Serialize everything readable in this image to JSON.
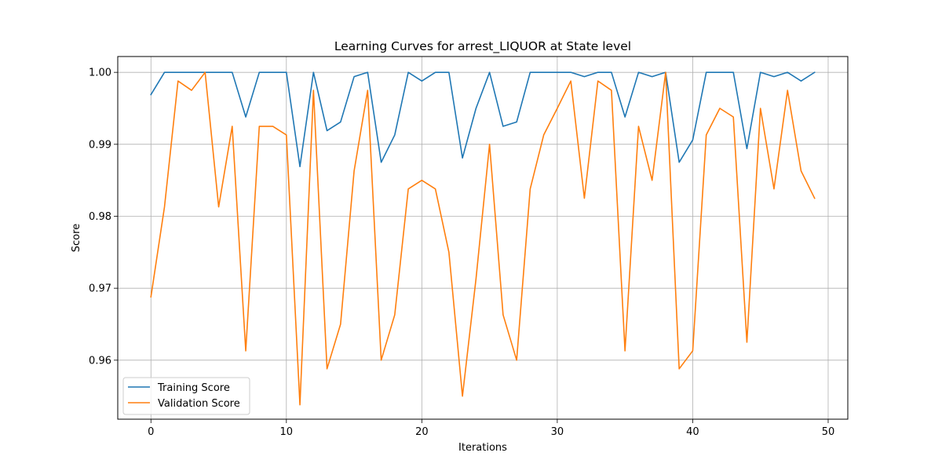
{
  "chart_data": {
    "type": "line",
    "title": "Learning Curves for arrest_LIQUOR at State level",
    "xlabel": "Iterations",
    "ylabel": "Score",
    "xlim": [
      -2.45,
      51.45
    ],
    "ylim": [
      0.9518,
      1.0022
    ],
    "x_ticks": [
      0,
      10,
      20,
      30,
      40,
      50
    ],
    "y_ticks": [
      0.96,
      0.97,
      0.98,
      0.99,
      1.0
    ],
    "x_tick_labels": [
      "0",
      "10",
      "20",
      "30",
      "40",
      "50"
    ],
    "y_tick_labels": [
      "0.96",
      "0.97",
      "0.98",
      "0.99",
      "1.00"
    ],
    "grid": true,
    "legend_position": "lower-left",
    "x": [
      0,
      1,
      2,
      3,
      4,
      5,
      6,
      7,
      8,
      9,
      10,
      11,
      12,
      13,
      14,
      15,
      16,
      17,
      18,
      19,
      20,
      21,
      22,
      23,
      24,
      25,
      26,
      27,
      28,
      29,
      30,
      31,
      32,
      33,
      34,
      35,
      36,
      37,
      38,
      39,
      40,
      41,
      42,
      43,
      44,
      45,
      46,
      47,
      48,
      49
    ],
    "series": [
      {
        "name": "Training Score",
        "color": "#1f77b4",
        "values": [
          0.9969,
          1.0,
          1.0,
          1.0,
          1.0,
          1.0,
          1.0,
          0.9938,
          1.0,
          1.0,
          1.0,
          0.9869,
          1.0,
          0.9919,
          0.9931,
          0.9994,
          1.0,
          0.9875,
          0.9913,
          1.0,
          0.9988,
          1.0,
          1.0,
          0.9881,
          0.995,
          1.0,
          0.9925,
          0.9931,
          1.0,
          1.0,
          1.0,
          1.0,
          0.9994,
          1.0,
          1.0,
          0.9938,
          1.0,
          0.9994,
          1.0,
          0.9875,
          0.9906,
          1.0,
          1.0,
          1.0,
          0.9894,
          1.0,
          0.9994,
          1.0,
          0.9988,
          1.0
        ]
      },
      {
        "name": "Validation Score",
        "color": "#ff7f0e",
        "values": [
          0.9688,
          0.9813,
          0.9988,
          0.9975,
          1.0,
          0.9813,
          0.9925,
          0.9613,
          0.9925,
          0.9925,
          0.9913,
          0.9538,
          0.9975,
          0.9588,
          0.965,
          0.9863,
          0.9975,
          0.96,
          0.9663,
          0.9838,
          0.985,
          0.9838,
          0.975,
          0.955,
          0.9713,
          0.99,
          0.9663,
          0.96,
          0.9838,
          0.9913,
          0.995,
          0.9988,
          0.9825,
          0.9988,
          0.9975,
          0.9613,
          0.9925,
          0.985,
          1.0,
          0.9588,
          0.9613,
          0.9913,
          0.995,
          0.9938,
          0.9625,
          0.995,
          0.9838,
          0.9975,
          0.9863,
          0.9825
        ]
      }
    ]
  }
}
